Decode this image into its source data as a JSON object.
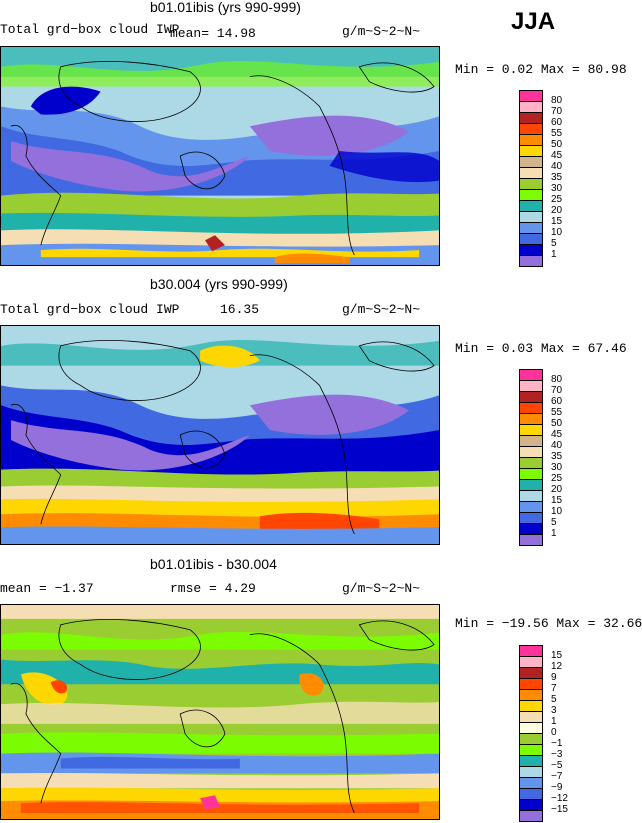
{
  "season": "JJA",
  "panels": [
    {
      "title": "b01.01ibis (yrs 990-999)",
      "left": "Total grd−box cloud IWP",
      "mean": "mean=  14.98",
      "units": "g/m~S~2~N~",
      "minmax": "Min =   0.02 Max =  80.98",
      "colorbar": {
        "labels": [
          "80",
          "70",
          "60",
          "55",
          "50",
          "45",
          "40",
          "35",
          "30",
          "25",
          "20",
          "15",
          "10",
          "5",
          "1"
        ],
        "colors": [
          "#ff3399",
          "#ffb3c6",
          "#b22222",
          "#ff4500",
          "#ff8c00",
          "#ffd700",
          "#d2b48c",
          "#f5deb3",
          "#9acd32",
          "#7cfc00",
          "#20b2aa",
          "#add8e6",
          "#6495ed",
          "#4169e1",
          "#0000cd",
          "#9370db"
        ]
      }
    },
    {
      "title": "b30.004 (yrs 990-999)",
      "left": "Total grd−box cloud IWP",
      "mean": "16.35",
      "units": "g/m~S~2~N~",
      "minmax": "Min =   0.03 Max =  67.46",
      "colorbar": {
        "labels": [
          "80",
          "70",
          "60",
          "55",
          "50",
          "45",
          "40",
          "35",
          "30",
          "25",
          "20",
          "15",
          "10",
          "5",
          "1"
        ],
        "colors": [
          "#ff3399",
          "#ffb3c6",
          "#b22222",
          "#ff4500",
          "#ff8c00",
          "#ffd700",
          "#d2b48c",
          "#f5deb3",
          "#9acd32",
          "#7cfc00",
          "#20b2aa",
          "#add8e6",
          "#6495ed",
          "#4169e1",
          "#0000cd",
          "#9370db"
        ]
      }
    },
    {
      "title": "b01.01ibis - b30.004",
      "left": "mean =  −1.37",
      "mean": "rmse =   4.29",
      "units": "g/m~S~2~N~",
      "minmax": "Min = −19.56 Max =  32.66",
      "colorbar": {
        "labels": [
          "15",
          "12",
          "9",
          "7",
          "5",
          "3",
          "1",
          "0",
          "−1",
          "−3",
          "−5",
          "−7",
          "−9",
          "−12",
          "−15"
        ],
        "colors": [
          "#ff3399",
          "#ffb3c6",
          "#b22222",
          "#ff4500",
          "#ff8c00",
          "#ffd700",
          "#f5deb3",
          "#ffffe0",
          "#9acd32",
          "#7cfc00",
          "#20b2aa",
          "#add8e6",
          "#6495ed",
          "#4169e1",
          "#0000cd",
          "#9370db"
        ]
      }
    }
  ]
}
